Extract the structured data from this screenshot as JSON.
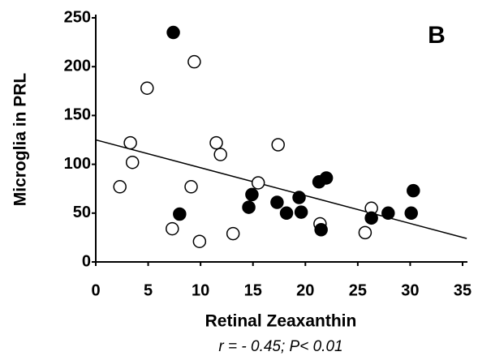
{
  "chart_data": {
    "type": "scatter",
    "x_label": "Retinal Zeaxanthin",
    "y_label": "Microglia in PRL",
    "subtitle": "r = - 0.45; P< 0.01",
    "annotation": "B",
    "xlim": [
      0,
      35
    ],
    "ylim": [
      0,
      250
    ],
    "xticks": [
      0,
      5,
      10,
      15,
      20,
      25,
      30,
      35
    ],
    "yticks": [
      0,
      50,
      100,
      150,
      200,
      250
    ],
    "series": [
      {
        "color": "#ffffff",
        "x": [
          2.3,
          4.9,
          3.3,
          3.5,
          7.3,
          9.4,
          9.1,
          9.9,
          11.5,
          11.9,
          13.1,
          15.5,
          17.4,
          21.4,
          25.7,
          26.3
        ],
        "values": [
          77,
          178,
          122,
          102,
          34,
          205,
          77,
          21,
          122,
          110,
          29,
          81,
          120,
          39,
          30,
          55
        ]
      },
      {
        "color": "#000000",
        "x": [
          7.4,
          8.0,
          14.6,
          14.9,
          17.3,
          18.2,
          19.4,
          19.6,
          21.3,
          22.0,
          21.5,
          26.3,
          27.9,
          30.1,
          30.3
        ],
        "values": [
          235,
          49,
          56,
          69,
          61,
          50,
          66,
          51,
          82,
          86,
          33,
          45,
          50,
          50,
          73
        ]
      }
    ],
    "fit_line": {
      "x": [
        0,
        35.4
      ],
      "values": [
        125,
        24
      ]
    }
  }
}
